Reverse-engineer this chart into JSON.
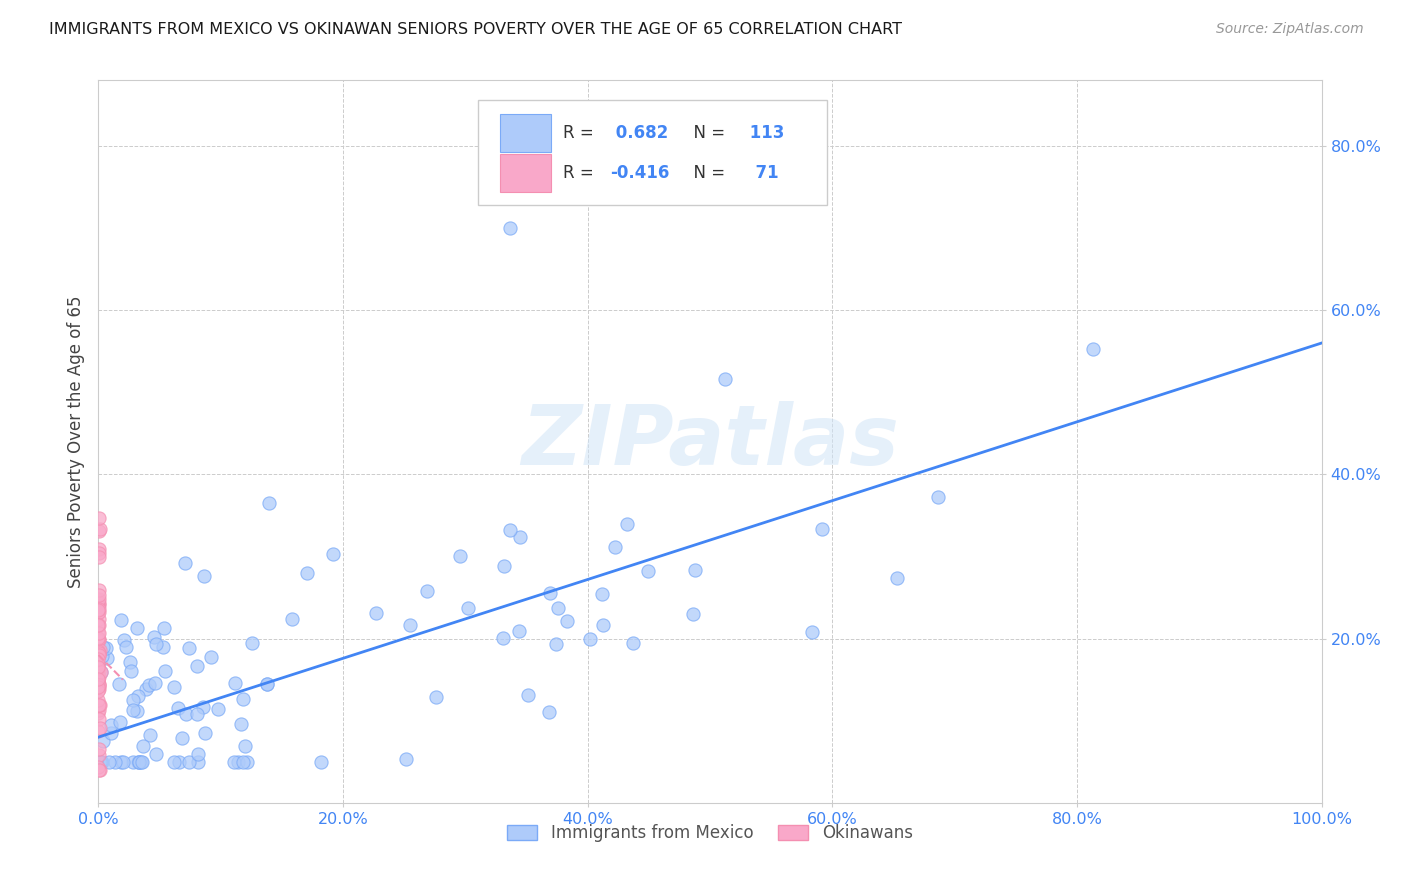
{
  "title": "IMMIGRANTS FROM MEXICO VS OKINAWAN SENIORS POVERTY OVER THE AGE OF 65 CORRELATION CHART",
  "source": "Source: ZipAtlas.com",
  "ylabel": "Seniors Poverty Over the Age of 65",
  "xlim": [
    0,
    1.0
  ],
  "ylim": [
    0,
    0.88
  ],
  "xticks": [
    0.0,
    0.2,
    0.4,
    0.6,
    0.8,
    1.0
  ],
  "yticks": [
    0.2,
    0.4,
    0.6,
    0.8
  ],
  "xticklabels": [
    "0.0%",
    "20.0%",
    "40.0%",
    "60.0%",
    "80.0%",
    "100.0%"
  ],
  "yticklabels": [
    "20.0%",
    "40.0%",
    "60.0%",
    "80.0%"
  ],
  "R_mexico": 0.682,
  "N_mexico": 113,
  "R_okinawa": -0.416,
  "N_okinawa": 71,
  "mexico_fill": "#aecbfa",
  "mexico_edge": "#7baaf7",
  "okinawa_fill": "#f9a8c9",
  "okinawa_edge": "#f48fb1",
  "trend_mexico_color": "#4285f4",
  "trend_okinawa_color": "#f48fb1",
  "watermark": "ZIPatlas",
  "background_color": "#ffffff",
  "grid_color": "#cccccc",
  "tick_color": "#4285f4",
  "legend_R_color": "#4285f4",
  "trend_mexico_slope": 0.48,
  "trend_mexico_intercept": 0.08,
  "trend_okinawa_slope": -1.5,
  "trend_okinawa_intercept": 0.18
}
